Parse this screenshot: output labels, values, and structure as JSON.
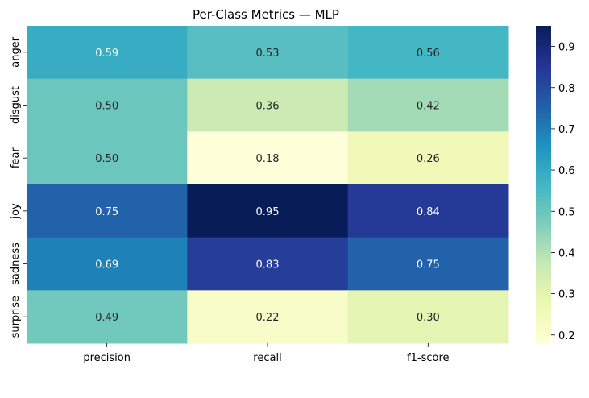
{
  "chart_data": {
    "type": "heatmap",
    "title": "Per-Class Metrics — MLP",
    "xlabel": "",
    "ylabel": "",
    "columns": [
      "precision",
      "recall",
      "f1-score"
    ],
    "rows": [
      "anger",
      "disgust",
      "fear",
      "joy",
      "sadness",
      "surprise"
    ],
    "values": [
      [
        0.59,
        0.53,
        0.56
      ],
      [
        0.5,
        0.36,
        0.42
      ],
      [
        0.5,
        0.18,
        0.26
      ],
      [
        0.75,
        0.95,
        0.84
      ],
      [
        0.69,
        0.83,
        0.75
      ],
      [
        0.49,
        0.22,
        0.3
      ]
    ],
    "value_labels": [
      [
        "0.59",
        "0.53",
        "0.56"
      ],
      [
        "0.50",
        "0.36",
        "0.42"
      ],
      [
        "0.50",
        "0.18",
        "0.26"
      ],
      [
        "0.75",
        "0.95",
        "0.84"
      ],
      [
        "0.69",
        "0.83",
        "0.75"
      ],
      [
        "0.49",
        "0.22",
        "0.30"
      ]
    ],
    "colormap": "YlGnBu",
    "colorbar": {
      "vmin": 0.18,
      "vmax": 0.95,
      "ticks": [
        0.2,
        0.3,
        0.4,
        0.5,
        0.6,
        0.7,
        0.8,
        0.9
      ],
      "tick_labels": [
        "0.2",
        "0.3",
        "0.4",
        "0.5",
        "0.6",
        "0.7",
        "0.8",
        "0.9"
      ]
    },
    "grid": false,
    "legend": "colorbar-right"
  }
}
